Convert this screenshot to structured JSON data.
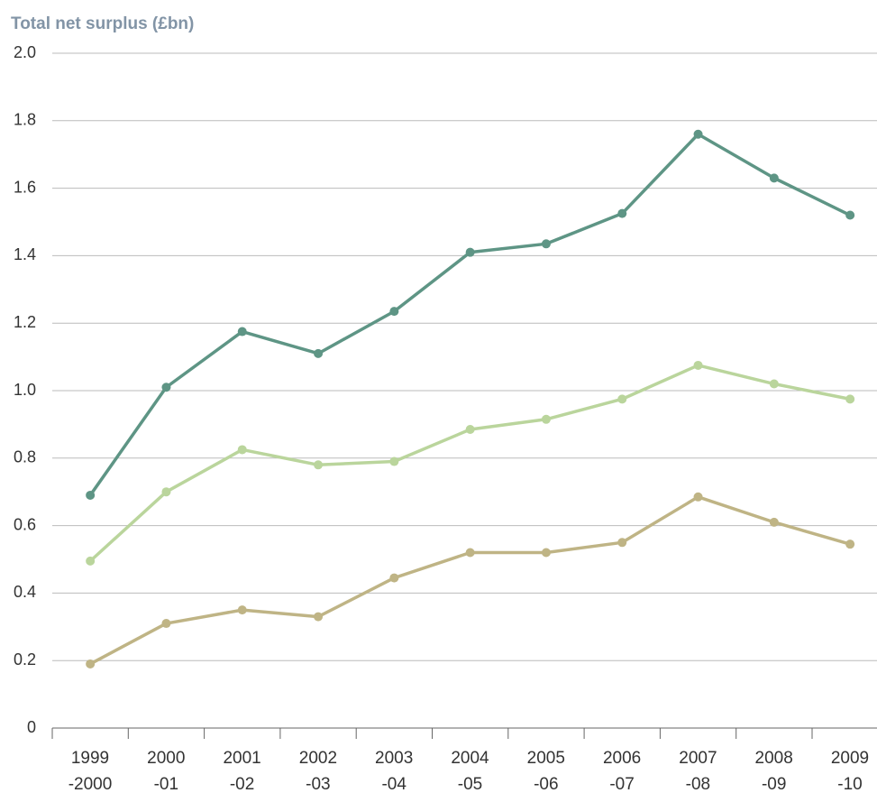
{
  "chart_data": {
    "type": "line",
    "title": "Total net surplus (£bn)",
    "categories": [
      "1999\n-2000",
      "2000\n-01",
      "2001\n-02",
      "2002\n-03",
      "2003\n-04",
      "2004\n-05",
      "2005\n-06",
      "2006\n-07",
      "2007\n-08",
      "2008\n-09",
      "2009\n-10"
    ],
    "series": [
      {
        "color": "#5e9585",
        "values": [
          0.69,
          1.01,
          1.175,
          1.11,
          1.235,
          1.41,
          1.435,
          1.525,
          1.76,
          1.63,
          1.52
        ]
      },
      {
        "color": "#bad59c",
        "values": [
          0.495,
          0.7,
          0.825,
          0.78,
          0.79,
          0.885,
          0.915,
          0.975,
          1.075,
          1.02,
          0.975
        ]
      },
      {
        "color": "#bfb485",
        "values": [
          0.19,
          0.31,
          0.35,
          0.33,
          0.445,
          0.52,
          0.52,
          0.55,
          0.685,
          0.61,
          0.545
        ]
      }
    ],
    "ylim": [
      0,
      2
    ],
    "yticks": [
      0,
      0.2,
      0.4,
      0.6,
      0.8,
      {
        "value": 1,
        "label": "1.0"
      },
      1.2,
      1.4,
      1.6,
      1.8,
      {
        "value": 2,
        "label": "2.0"
      }
    ],
    "grid": true
  }
}
